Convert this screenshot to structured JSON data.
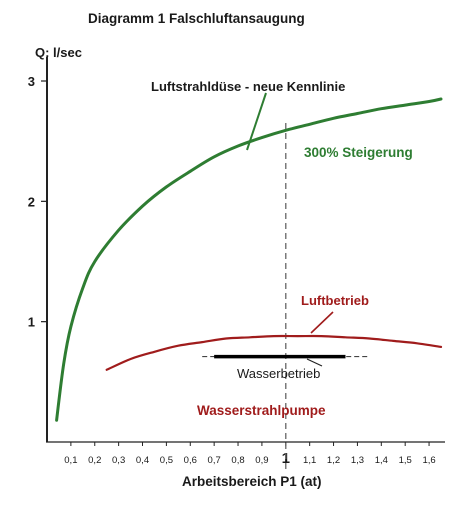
{
  "chart_data": {
    "type": "line",
    "title": "Diagramm 1 Falschluftansaugung",
    "ylabel": "Q: l/sec",
    "xlabel": "Arbeitsbereich  P1 (at)",
    "xlim": [
      0,
      1.65
    ],
    "ylim": [
      0,
      3.2
    ],
    "x_ticks": [
      {
        "value": 0.1,
        "label": "0,1"
      },
      {
        "value": 0.2,
        "label": "0,2"
      },
      {
        "value": 0.3,
        "label": "0,3"
      },
      {
        "value": 0.4,
        "label": "0,4"
      },
      {
        "value": 0.5,
        "label": "0,5"
      },
      {
        "value": 0.6,
        "label": "0,6"
      },
      {
        "value": 0.7,
        "label": "0,7"
      },
      {
        "value": 0.8,
        "label": "0,8"
      },
      {
        "value": 0.9,
        "label": "0,9"
      },
      {
        "value": 1.0,
        "label": "1"
      },
      {
        "value": 1.1,
        "label": "1,1"
      },
      {
        "value": 1.2,
        "label": "1,2"
      },
      {
        "value": 1.3,
        "label": "1,3"
      },
      {
        "value": 1.4,
        "label": "1,4"
      },
      {
        "value": 1.5,
        "label": "1,5"
      },
      {
        "value": 1.6,
        "label": "1,6"
      }
    ],
    "y_ticks": [
      {
        "value": 1,
        "label": "1"
      },
      {
        "value": 2,
        "label": "2"
      },
      {
        "value": 3,
        "label": "3"
      }
    ],
    "reference_line_x": 1.0,
    "series": [
      {
        "name": "Luftstrahldüse -  neue Kennlinie",
        "color": "#2e7d32",
        "x": [
          0.04,
          0.07,
          0.1,
          0.15,
          0.2,
          0.3,
          0.4,
          0.5,
          0.6,
          0.7,
          0.8,
          0.9,
          1.0,
          1.1,
          1.2,
          1.3,
          1.4,
          1.5,
          1.6,
          1.65
        ],
        "y": [
          0.18,
          0.65,
          0.96,
          1.28,
          1.5,
          1.76,
          1.96,
          2.12,
          2.25,
          2.37,
          2.46,
          2.53,
          2.59,
          2.64,
          2.69,
          2.73,
          2.77,
          2.8,
          2.83,
          2.85
        ]
      },
      {
        "name": "Luftbetrieb",
        "color": "#a01c1c",
        "x": [
          0.25,
          0.35,
          0.45,
          0.55,
          0.65,
          0.75,
          0.85,
          0.95,
          1.05,
          1.15,
          1.25,
          1.35,
          1.45,
          1.55,
          1.65
        ],
        "y": [
          0.6,
          0.69,
          0.75,
          0.8,
          0.83,
          0.86,
          0.87,
          0.88,
          0.88,
          0.88,
          0.87,
          0.86,
          0.84,
          0.82,
          0.79
        ]
      },
      {
        "name": "Wasserbetrieb",
        "color": "#000000",
        "x": [
          0.7,
          1.25
        ],
        "y": [
          0.71,
          0.71
        ],
        "dashed_extension": [
          0.65,
          1.35
        ]
      }
    ],
    "annotations": {
      "green_note": "300% Steigerung",
      "pump_label": "Wasserstrahlpumpe"
    },
    "grid": false,
    "legend": "none"
  }
}
